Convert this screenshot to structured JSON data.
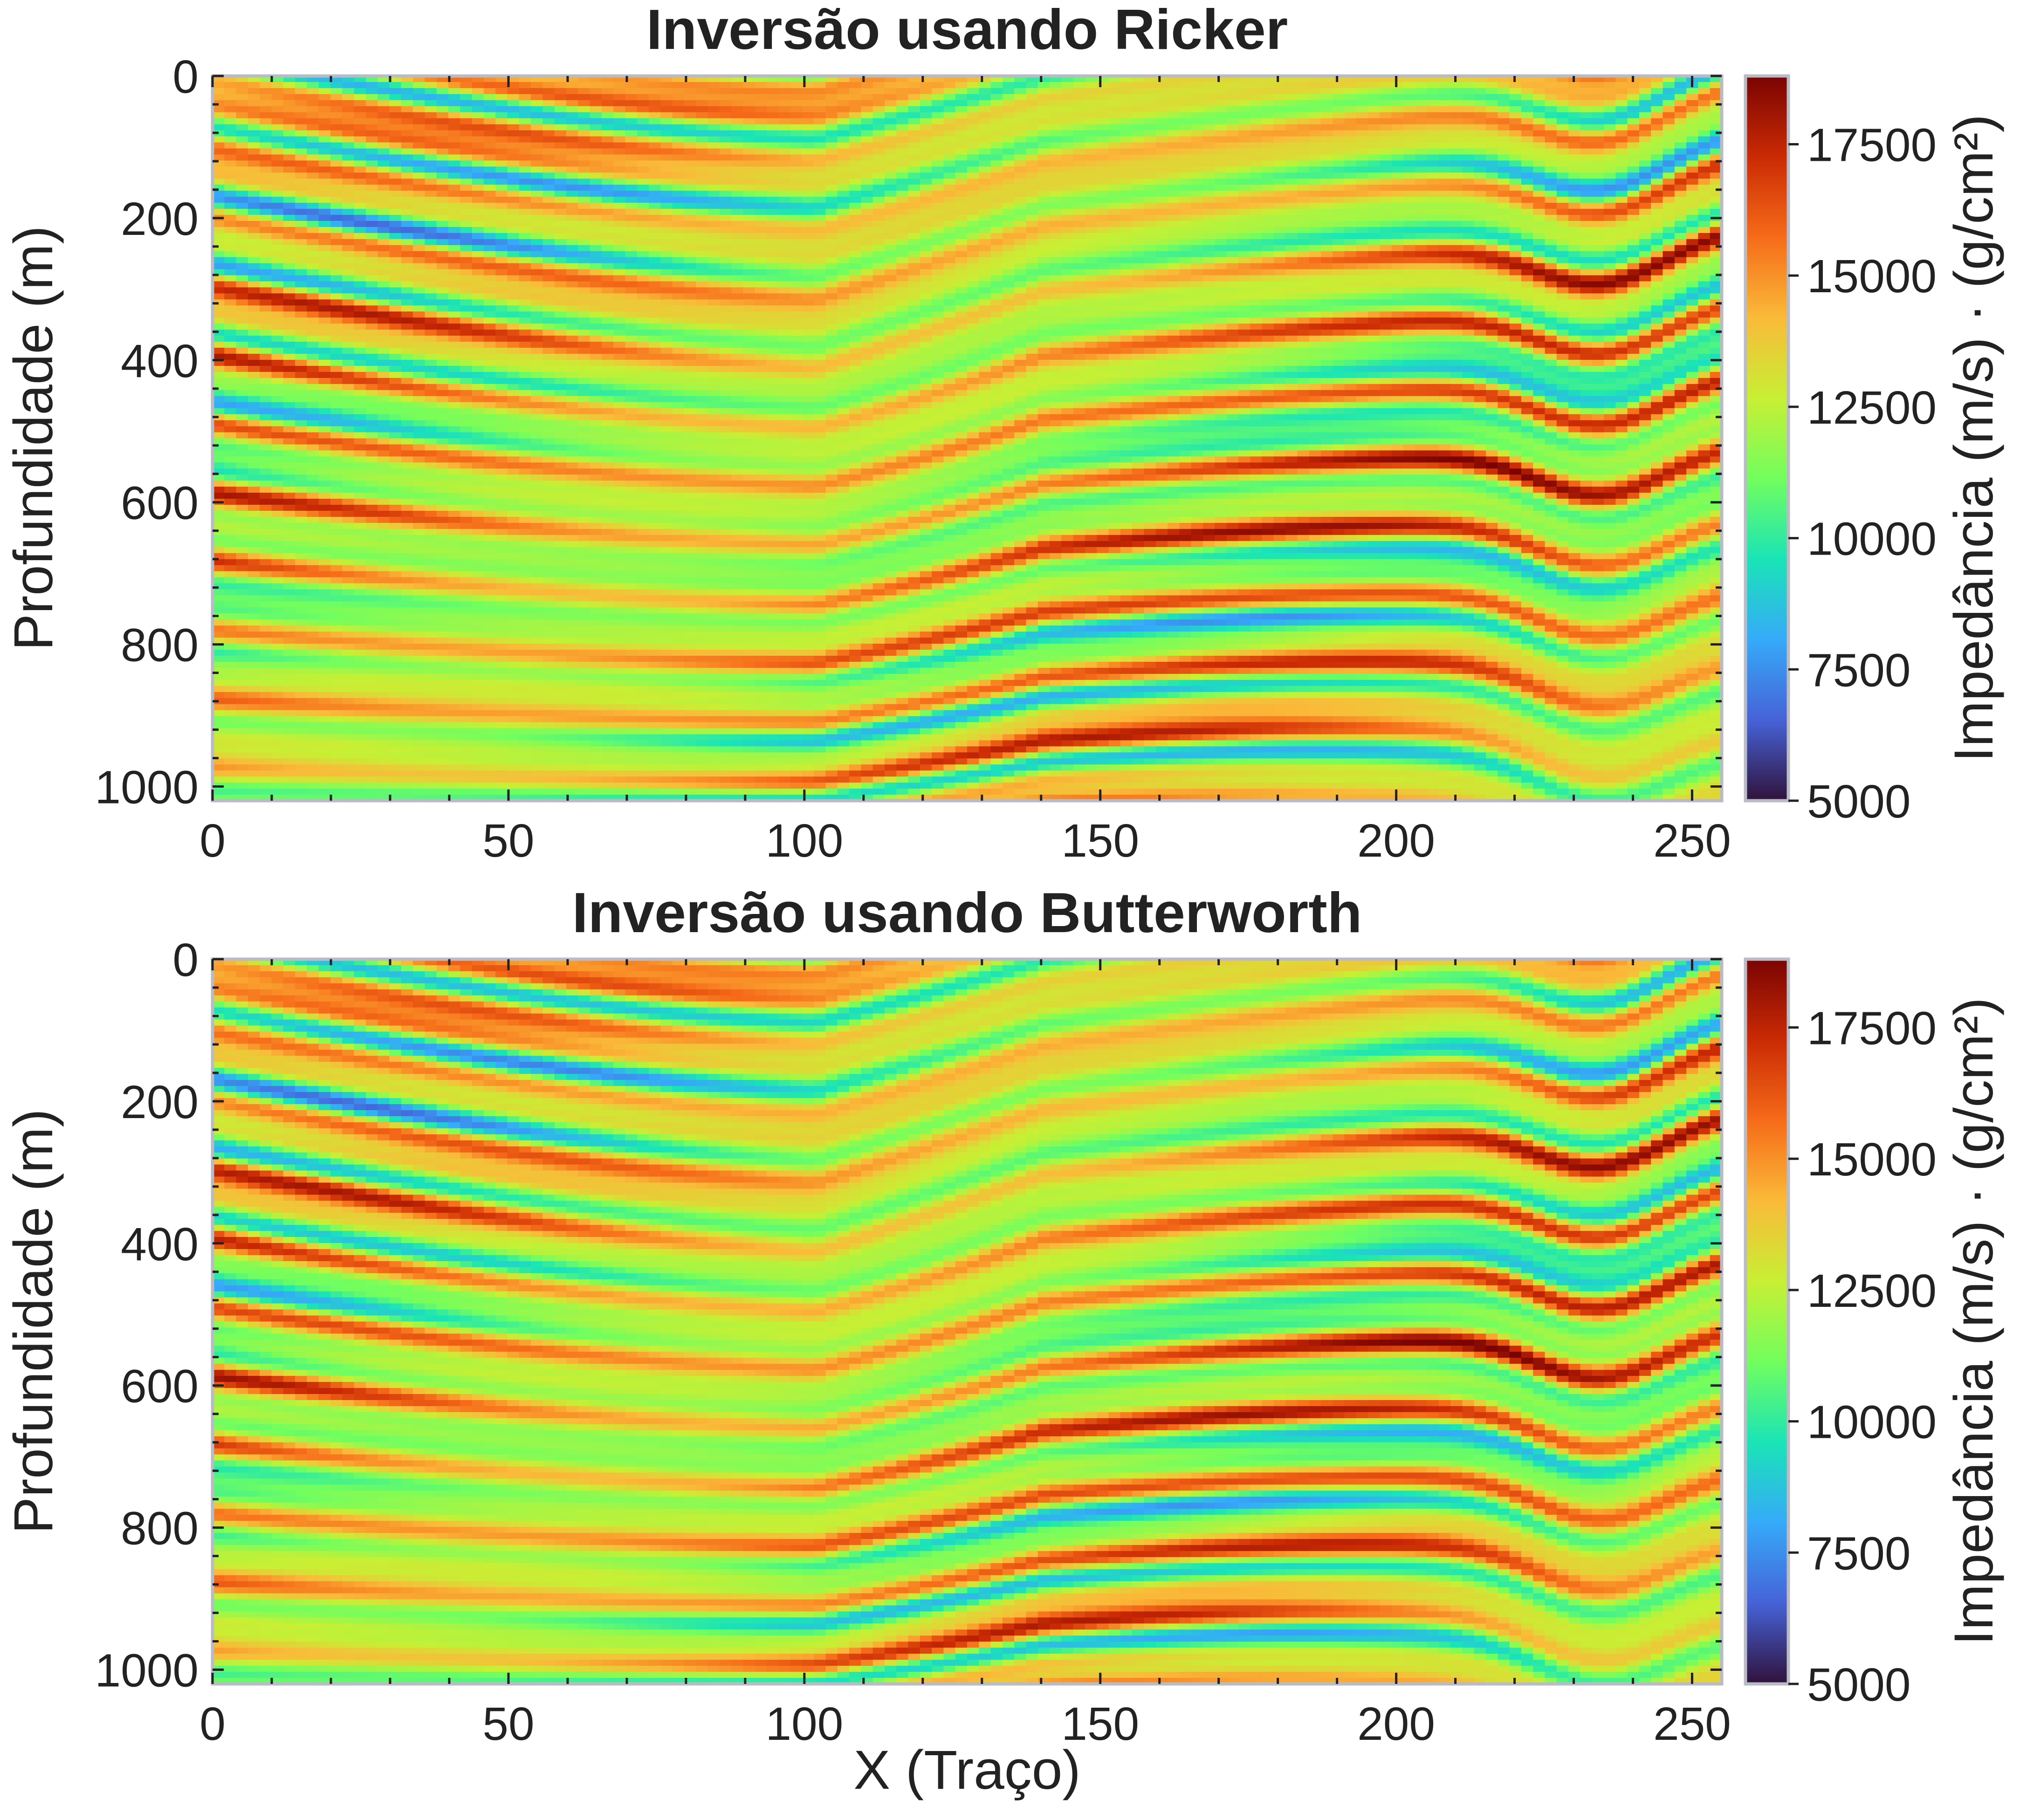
{
  "colors": {
    "frame": "#b9bcc4",
    "tick": "#222222",
    "text": "#222222",
    "colormap": [
      "#30123b",
      "#4662d7",
      "#36aaf9",
      "#1ae4b6",
      "#72fe5e",
      "#c8ef34",
      "#faba39",
      "#f66b19",
      "#ca2a04",
      "#7a0403"
    ]
  },
  "colorbar": {
    "label": "Impedância (m/s) · (g/cm²)",
    "vmin": 5000,
    "vmax": 18800,
    "ticks": [
      "5000",
      "7500",
      "10000",
      "12500",
      "15000",
      "17500"
    ]
  },
  "chart_data": [
    {
      "type": "heatmap",
      "title": "Inversão usando Ricker",
      "xlabel": "",
      "ylabel": "Profundidade (m)",
      "xlim": [
        0,
        255
      ],
      "ylim": [
        1020,
        0
      ],
      "xticks": [
        "0",
        "50",
        "100",
        "150",
        "200",
        "250"
      ],
      "yticks": [
        "0",
        "200",
        "400",
        "600",
        "800",
        "1000"
      ],
      "colorbar_label": "Impedância (m/s) · (g/cm²)",
      "colorbar_ticks": [
        "5000",
        "7500",
        "10000",
        "12500",
        "15000",
        "17500"
      ],
      "value_range": [
        5000,
        18800
      ]
    },
    {
      "type": "heatmap",
      "title": "Inversão usando Butterworth",
      "xlabel": "X (Traço)",
      "ylabel": "Profundidade (m)",
      "xlim": [
        0,
        255
      ],
      "ylim": [
        1020,
        0
      ],
      "xticks": [
        "0",
        "50",
        "100",
        "150",
        "200",
        "250"
      ],
      "yticks": [
        "0",
        "200",
        "400",
        "600",
        "800",
        "1000"
      ],
      "colorbar_label": "Impedância (m/s) · (g/cm²)",
      "colorbar_ticks": [
        "5000",
        "7500",
        "10000",
        "12500",
        "15000",
        "17500"
      ],
      "value_range": [
        5000,
        18800
      ]
    }
  ]
}
